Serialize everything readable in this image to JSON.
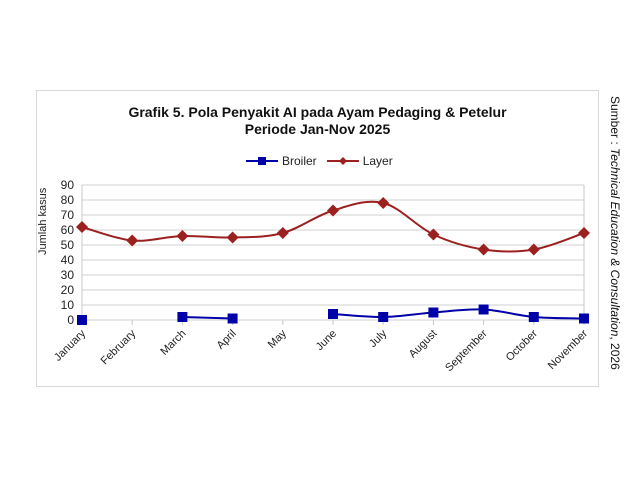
{
  "chart_data": {
    "type": "line",
    "title": "Grafik 5. Pola Penyakit AI pada Ayam Pedaging & Petelur",
    "subtitle": "Periode Jan-Nov 2025",
    "xlabel": "",
    "ylabel": "Jumlah kasus",
    "ylim": [
      0,
      90
    ],
    "yticks": [
      0,
      10,
      20,
      30,
      40,
      50,
      60,
      70,
      80,
      90
    ],
    "grid": true,
    "legend_position": "top",
    "categories": [
      "January",
      "February",
      "March",
      "April",
      "May",
      "June",
      "July",
      "August",
      "September",
      "October",
      "November"
    ],
    "series": [
      {
        "name": "Broiler",
        "color": "#0000A8",
        "marker": "square",
        "values": [
          0,
          null,
          2,
          1,
          null,
          4,
          2,
          5,
          7,
          2,
          1
        ]
      },
      {
        "name": "Layer",
        "color": "#9B2020",
        "marker": "diamond",
        "values": [
          62,
          53,
          56,
          55,
          58,
          73,
          78,
          57,
          47,
          47,
          58
        ]
      }
    ]
  },
  "title_line1": "Grafik 5. Pola Penyakit AI pada Ayam Pedaging & Petelur",
  "title_line2": "Periode Jan-Nov 2025",
  "legend": {
    "broiler": "Broiler",
    "layer": "Layer"
  },
  "source": {
    "prefix": "Sumber : ",
    "org": "Technical Education & Consultation",
    "suffix": ", 2026"
  }
}
